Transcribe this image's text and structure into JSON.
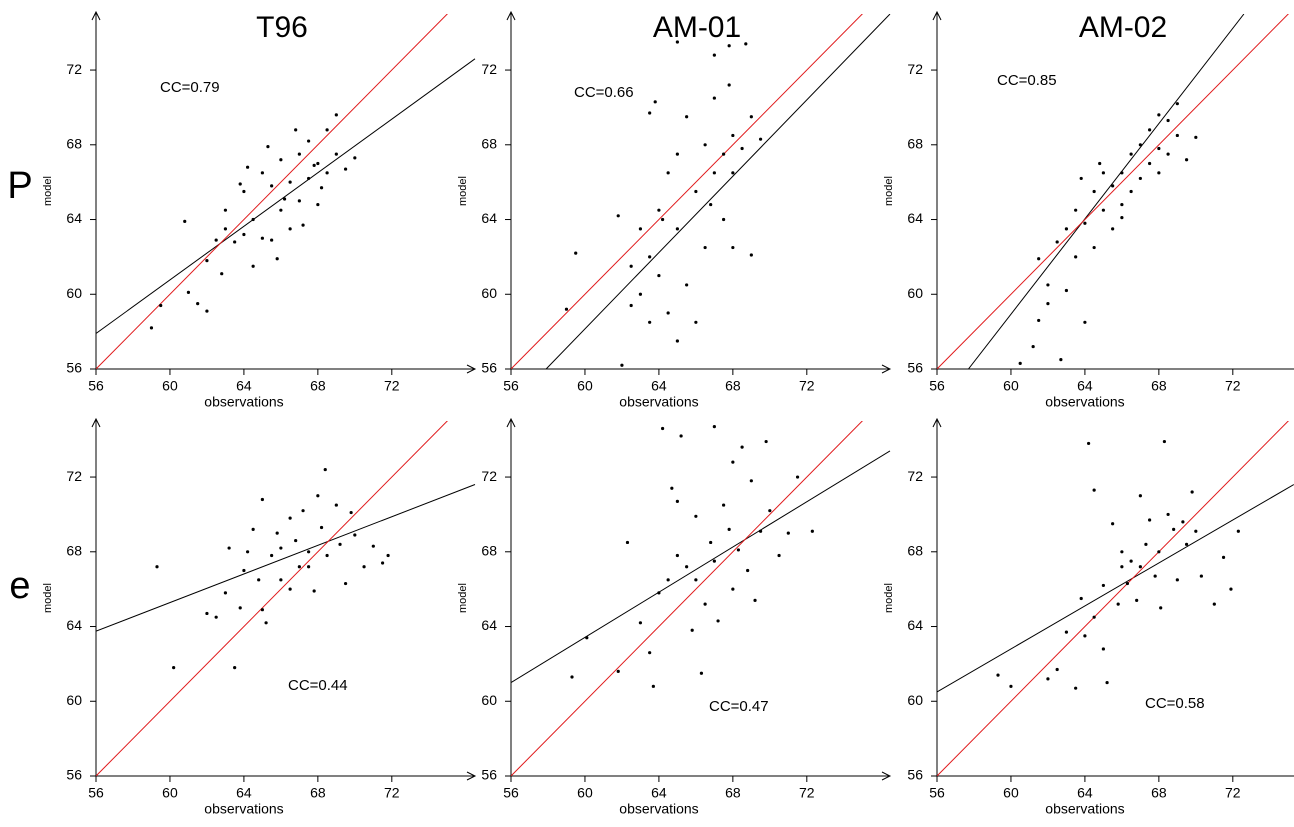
{
  "row_labels": [
    "P",
    "e"
  ],
  "chart_data": [
    {
      "type": "scatter",
      "title": "T96",
      "annotation": "CC=0.79",
      "xlabel": "observations",
      "ylabel": "model",
      "color": "#000000",
      "xlim": [
        56,
        76.5
      ],
      "ylim": [
        56,
        75
      ],
      "xticks": [
        56,
        60,
        64,
        68,
        72
      ],
      "yticks": [
        56,
        60,
        64,
        68,
        72
      ],
      "x": [
        59,
        59.5,
        61,
        61.5,
        62,
        60.8,
        62,
        62.5,
        63,
        63.5,
        63,
        64,
        64,
        64.5,
        65,
        65,
        65.5,
        65.5,
        66,
        66,
        66.5,
        66.5,
        67,
        67,
        67.5,
        67.5,
        68,
        68,
        68.5,
        68.5,
        69,
        69,
        69.5,
        70,
        64.2,
        63.8,
        65.3,
        66.8,
        67.2,
        62.8,
        68.2,
        65.8,
        64.5,
        66.2,
        67.8
      ],
      "values": [
        58.2,
        59.4,
        60.1,
        59.5,
        59.1,
        63.9,
        61.8,
        62.9,
        63.5,
        62.8,
        64.5,
        63.2,
        65.5,
        64,
        63,
        66.5,
        65.8,
        62.9,
        64.5,
        67.2,
        66,
        63.5,
        67.5,
        65,
        68.2,
        66.2,
        67,
        64.8,
        68.8,
        66.5,
        69.6,
        67.5,
        66.7,
        67.3,
        66.8,
        65.9,
        67.9,
        68.8,
        63.7,
        61.1,
        65.7,
        61.9,
        61.5,
        65.1,
        66.9
      ],
      "lines": [
        {
          "color": "#000000",
          "x": [
            56,
            76.5
          ],
          "values": [
            57.9,
            72.6
          ]
        },
        {
          "color": "#e0191b",
          "x": [
            56,
            76.5
          ],
          "values": [
            56,
            76.5
          ]
        }
      ]
    },
    {
      "type": "scatter",
      "title": "AM-01",
      "annotation": "CC=0.66",
      "xlabel": "observations",
      "ylabel": "model",
      "color": "#000000",
      "xlim": [
        56,
        76.5
      ],
      "ylim": [
        56,
        75
      ],
      "xticks": [
        56,
        60,
        64,
        68,
        72
      ],
      "yticks": [
        56,
        60,
        64,
        68,
        72
      ],
      "x": [
        59,
        59.5,
        61,
        62,
        61.8,
        62.5,
        62.5,
        63,
        63,
        63.5,
        63.5,
        64,
        64,
        64.5,
        64.5,
        65,
        65,
        65,
        65.5,
        65.5,
        66,
        66,
        66.5,
        66.5,
        67,
        67,
        67.5,
        67.5,
        68,
        68,
        68,
        68.5,
        69,
        69,
        68.7,
        67.8,
        63.8,
        63.5,
        65,
        67,
        67.8,
        69.5,
        64.2,
        66.8
      ],
      "values": [
        59.2,
        62.2,
        55.8,
        56.2,
        64.2,
        61.5,
        59.4,
        60,
        63.5,
        62,
        58.5,
        64.5,
        61,
        66.5,
        59,
        57.5,
        63.5,
        67.5,
        60.5,
        69.5,
        65.5,
        58.5,
        68,
        62.5,
        70.5,
        66.5,
        67.5,
        64,
        68.5,
        66.5,
        62.5,
        67.8,
        69.5,
        62.1,
        73.4,
        73.3,
        70.3,
        69.7,
        73.5,
        72.8,
        71.2,
        68.3,
        64,
        64.8
      ],
      "lines": [
        {
          "color": "#000000",
          "x": [
            57.9,
            76.5
          ],
          "values": [
            56,
            75
          ]
        },
        {
          "color": "#e0191b",
          "x": [
            56,
            76.5
          ],
          "values": [
            56,
            76.5
          ]
        }
      ]
    },
    {
      "type": "scatter",
      "title": "AM-02",
      "annotation": "CC=0.85",
      "xlabel": "observations",
      "ylabel": "model",
      "color": "#000000",
      "xlim": [
        56,
        76.5
      ],
      "ylim": [
        56,
        75
      ],
      "xticks": [
        56,
        60,
        64,
        68,
        72
      ],
      "yticks": [
        56,
        60,
        64,
        68,
        72
      ],
      "x": [
        59.2,
        59.7,
        60.5,
        61.2,
        61.5,
        62,
        62,
        61.5,
        62.5,
        63,
        63,
        63.5,
        63.5,
        64,
        64,
        64.5,
        64.5,
        65,
        65,
        65.5,
        65.5,
        66,
        66,
        66.5,
        66.5,
        67,
        67,
        67.5,
        67.5,
        68,
        68,
        68.5,
        68.5,
        69,
        69,
        69.5,
        70,
        68,
        66,
        64.8,
        63.8,
        62.7
      ],
      "values": [
        55.6,
        55.7,
        56.3,
        57.2,
        58.6,
        59.5,
        60.5,
        61.9,
        62.8,
        60.2,
        63.5,
        62,
        64.5,
        58.5,
        63.8,
        65.5,
        62.5,
        64.5,
        66.5,
        63.5,
        65.8,
        66.5,
        64.8,
        67.5,
        65.5,
        68,
        66.2,
        67,
        68.8,
        67.8,
        66.5,
        69.3,
        67.5,
        68.5,
        70.2,
        67.2,
        68.4,
        69.6,
        64.1,
        67,
        66.2,
        56.5
      ],
      "lines": [
        {
          "color": "#000000",
          "x": [
            57.7,
            72.6
          ],
          "values": [
            56,
            75
          ]
        },
        {
          "color": "#e0191b",
          "x": [
            56,
            76.5
          ],
          "values": [
            56,
            76.5
          ]
        }
      ]
    },
    {
      "type": "scatter",
      "annotation": "CC=0.44",
      "xlabel": "observations",
      "ylabel": "model",
      "color": "#000000",
      "xlim": [
        56,
        76.5
      ],
      "ylim": [
        56,
        75
      ],
      "xticks": [
        56,
        60,
        64,
        68,
        72
      ],
      "yticks": [
        56,
        60,
        64,
        68,
        72
      ],
      "x": [
        59.3,
        60.2,
        62,
        62.5,
        63,
        63.2,
        63.5,
        63.8,
        64,
        64.2,
        64.5,
        64.8,
        65,
        65,
        65.2,
        65.5,
        65.8,
        66,
        66,
        66.5,
        66.8,
        67,
        67.2,
        67.5,
        67.8,
        68,
        68.2,
        68.4,
        68.5,
        69,
        69.2,
        69.5,
        69.8,
        70,
        70.5,
        71,
        71.5,
        71.8,
        66.5,
        67.5
      ],
      "values": [
        67.2,
        61.8,
        64.7,
        64.5,
        65.8,
        68.2,
        61.8,
        65,
        67,
        68,
        69.2,
        66.5,
        70.8,
        64.9,
        64.2,
        67.8,
        69,
        68.2,
        66.5,
        69.8,
        68.6,
        67.2,
        70.2,
        68,
        65.9,
        71,
        69.3,
        72.4,
        67.8,
        70.5,
        68.4,
        66.3,
        70.1,
        68.9,
        67.2,
        68.3,
        67.4,
        67.8,
        66,
        67.2
      ],
      "lines": [
        {
          "color": "#000000",
          "x": [
            56,
            76.5
          ],
          "values": [
            63.75,
            71.6
          ]
        },
        {
          "color": "#e0191b",
          "x": [
            56,
            76.5
          ],
          "values": [
            56,
            76.5
          ]
        }
      ]
    },
    {
      "type": "scatter",
      "annotation": "CC=0.47",
      "xlabel": "observations",
      "ylabel": "model",
      "color": "#000000",
      "xlim": [
        56,
        76.5
      ],
      "ylim": [
        56,
        75
      ],
      "xticks": [
        56,
        60,
        64,
        68,
        72
      ],
      "yticks": [
        56,
        60,
        64,
        68,
        72
      ],
      "x": [
        59.3,
        60.1,
        61.8,
        62.3,
        63,
        63.5,
        63.7,
        64,
        64.2,
        64.5,
        64.7,
        65,
        65.2,
        65.5,
        65.8,
        66,
        66,
        66.5,
        66.8,
        67,
        67,
        67.2,
        67.5,
        67.8,
        68,
        68,
        68.3,
        68.5,
        68.8,
        69,
        69.2,
        69.5,
        69.8,
        70,
        70.5,
        71,
        72.3,
        71.5,
        66.3,
        65
      ],
      "values": [
        61.3,
        63.4,
        61.6,
        68.5,
        64.2,
        62.6,
        60.8,
        65.8,
        74.6,
        66.5,
        71.4,
        70.7,
        74.2,
        67.2,
        63.8,
        69.9,
        66.5,
        65.2,
        68.5,
        74.7,
        67.5,
        64.3,
        70.5,
        69.2,
        72.8,
        66,
        68.1,
        73.6,
        67,
        71.8,
        65.4,
        69.1,
        73.9,
        70.2,
        67.8,
        69,
        69.1,
        72,
        61.5,
        67.8
      ],
      "lines": [
        {
          "color": "#000000",
          "x": [
            56,
            76.5
          ],
          "values": [
            61,
            73.4
          ]
        },
        {
          "color": "#e0191b",
          "x": [
            56,
            76.5
          ],
          "values": [
            56,
            76.5
          ]
        }
      ]
    },
    {
      "type": "scatter",
      "annotation": "CC=0.58",
      "xlabel": "observations",
      "ylabel": "model",
      "color": "#000000",
      "xlim": [
        56,
        76.5
      ],
      "ylim": [
        56,
        75
      ],
      "xticks": [
        56,
        60,
        64,
        68,
        72
      ],
      "yticks": [
        56,
        60,
        64,
        68,
        72
      ],
      "x": [
        59.3,
        60,
        62,
        62.5,
        63,
        63.5,
        63.8,
        64,
        64.2,
        64.5,
        64.5,
        65,
        65,
        65.2,
        65.5,
        65.8,
        66,
        66,
        66.3,
        66.5,
        66.8,
        67,
        67,
        67.3,
        67.5,
        67.8,
        68,
        68.1,
        68.3,
        68.5,
        68.8,
        69,
        69.3,
        69.5,
        69.8,
        70,
        70.3,
        71,
        71.5,
        71.9,
        72.3
      ],
      "values": [
        61.4,
        60.8,
        61.2,
        61.7,
        63.7,
        60.7,
        65.5,
        63.5,
        73.8,
        71.3,
        64.5,
        66.2,
        62.8,
        61,
        69.5,
        65.2,
        67.2,
        68,
        66.3,
        67.5,
        65.4,
        71,
        67.2,
        68.4,
        69.7,
        66.7,
        68,
        65,
        73.9,
        70,
        69.2,
        66.5,
        69.6,
        68.4,
        71.2,
        69.1,
        66.7,
        65.2,
        67.7,
        66,
        69.1
      ],
      "lines": [
        {
          "color": "#000000",
          "x": [
            56,
            75.3
          ],
          "values": [
            60.5,
            71.6
          ]
        },
        {
          "color": "#e0191b",
          "x": [
            56,
            76.5
          ],
          "values": [
            56,
            76.5
          ]
        }
      ]
    }
  ]
}
